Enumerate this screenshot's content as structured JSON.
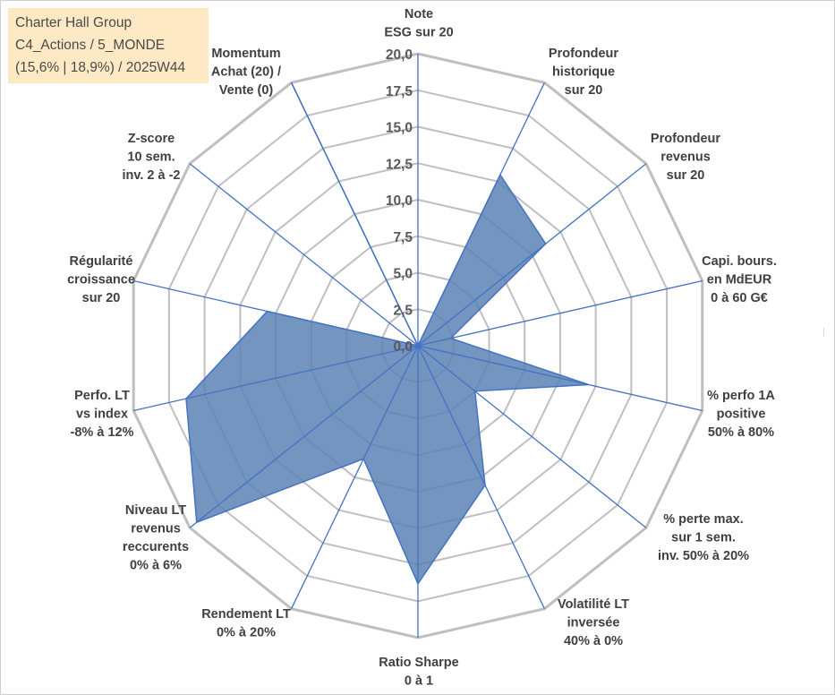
{
  "chart_data": {
    "type": "radar",
    "title": "Charter Hall Group",
    "subtitle_lines": [
      "C4_Actions / 5_MONDE",
      "(15,6% | 18,9%) / 2025W44"
    ],
    "rmin": 0,
    "rmax": 20,
    "tick_step": 2.5,
    "tick_labels": [
      "0,0",
      "2,5",
      "5,0",
      "7,5",
      "10,0",
      "12,5",
      "15,0",
      "17,5",
      "20,0"
    ],
    "axes": [
      {
        "lines": [
          "Note",
          "ESG sur 20"
        ],
        "anchor": "middle"
      },
      {
        "lines": [
          "Profondeur",
          "historique",
          "sur 20"
        ],
        "anchor": "middle"
      },
      {
        "lines": [
          "Profondeur",
          "revenus",
          "sur 20"
        ],
        "anchor": "middle"
      },
      {
        "lines": [
          "Capi. bours.",
          "en MdEUR",
          "0 à 60 G€"
        ],
        "anchor": "middle"
      },
      {
        "lines": [
          "% perfo 1A",
          "positive",
          "50% à 80%"
        ],
        "anchor": "middle"
      },
      {
        "lines": [
          "% perte max.",
          "sur 1 sem.",
          "inv. 50% à 20%"
        ],
        "anchor": "middle"
      },
      {
        "lines": [
          "Volatilité LT",
          "inversée",
          "40% à 0%"
        ],
        "anchor": "middle"
      },
      {
        "lines": [
          "Ratio Sharpe",
          "0 à 1"
        ],
        "anchor": "middle"
      },
      {
        "lines": [
          "Rendement LT",
          "0% à 20%"
        ],
        "anchor": "middle"
      },
      {
        "lines": [
          "Niveau LT",
          "revenus",
          "reccurents",
          "0% à 6%"
        ],
        "anchor": "middle"
      },
      {
        "lines": [
          "Perfo. LT",
          "vs index",
          "-8% à 12%"
        ],
        "anchor": "middle"
      },
      {
        "lines": [
          "Régularité",
          "croissance",
          "sur 20"
        ],
        "anchor": "middle"
      },
      {
        "lines": [
          "Z-score",
          "10 sem.",
          "inv. 2 à -2"
        ],
        "anchor": "middle"
      },
      {
        "lines": [
          "Momentum",
          "Achat (20) /",
          "Vente (0)"
        ],
        "anchor": "middle"
      }
    ],
    "series": [
      {
        "name": "Charter Hall Group",
        "values": [
          0,
          13.0,
          11.2,
          2.3,
          12.0,
          5.0,
          10.6,
          16.3,
          8.6,
          19.4,
          16.3,
          10.6,
          0,
          20.0
        ]
      }
    ],
    "colors": {
      "fill": "#5a83b5",
      "fill_opacity": "0.85",
      "series_stroke": "#4472c4",
      "spoke": "#4472c4",
      "grid": "#bfbfbf",
      "legend_bg": "#fde9c4"
    }
  }
}
